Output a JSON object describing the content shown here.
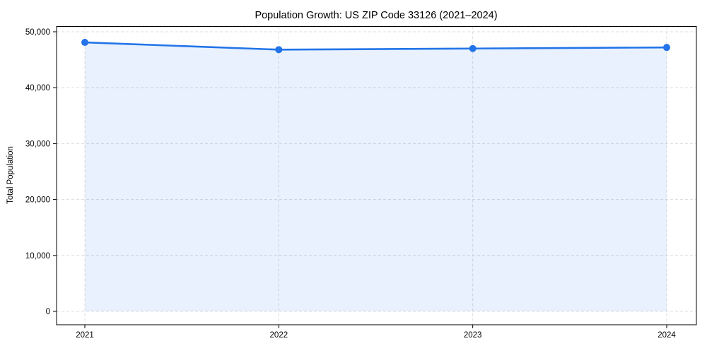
{
  "window": {
    "background": "#ffffff"
  },
  "chart_data": {
    "type": "area",
    "title": "Population Growth: US ZIP Code 33126 (2021–2024)",
    "xlabel": "",
    "ylabel": "Total Population",
    "x": [
      2021,
      2022,
      2023,
      2024
    ],
    "x_tick_labels": [
      "2021",
      "2022",
      "2023",
      "2024"
    ],
    "series": [
      {
        "name": "Total Population",
        "values": [
          48100,
          46800,
          47000,
          47200
        ]
      }
    ],
    "y_ticks": [
      0,
      10000,
      20000,
      30000,
      40000,
      50000
    ],
    "y_tick_labels": [
      "0",
      "10,000",
      "20,000",
      "30,000",
      "40,000",
      "50,000"
    ],
    "ylim": [
      0,
      50000
    ],
    "xlim": [
      2021,
      2024
    ],
    "grid": true,
    "grid_style": "dashed",
    "legend": "none",
    "marker": "circle",
    "colors": {
      "line": "#2274e8",
      "marker": "#2274e8",
      "fill": "rgba(34, 116, 232, 0.10)",
      "grid": "#dcdcdc",
      "spine": "#000000",
      "tick": "#000000",
      "text": "#000000"
    }
  }
}
